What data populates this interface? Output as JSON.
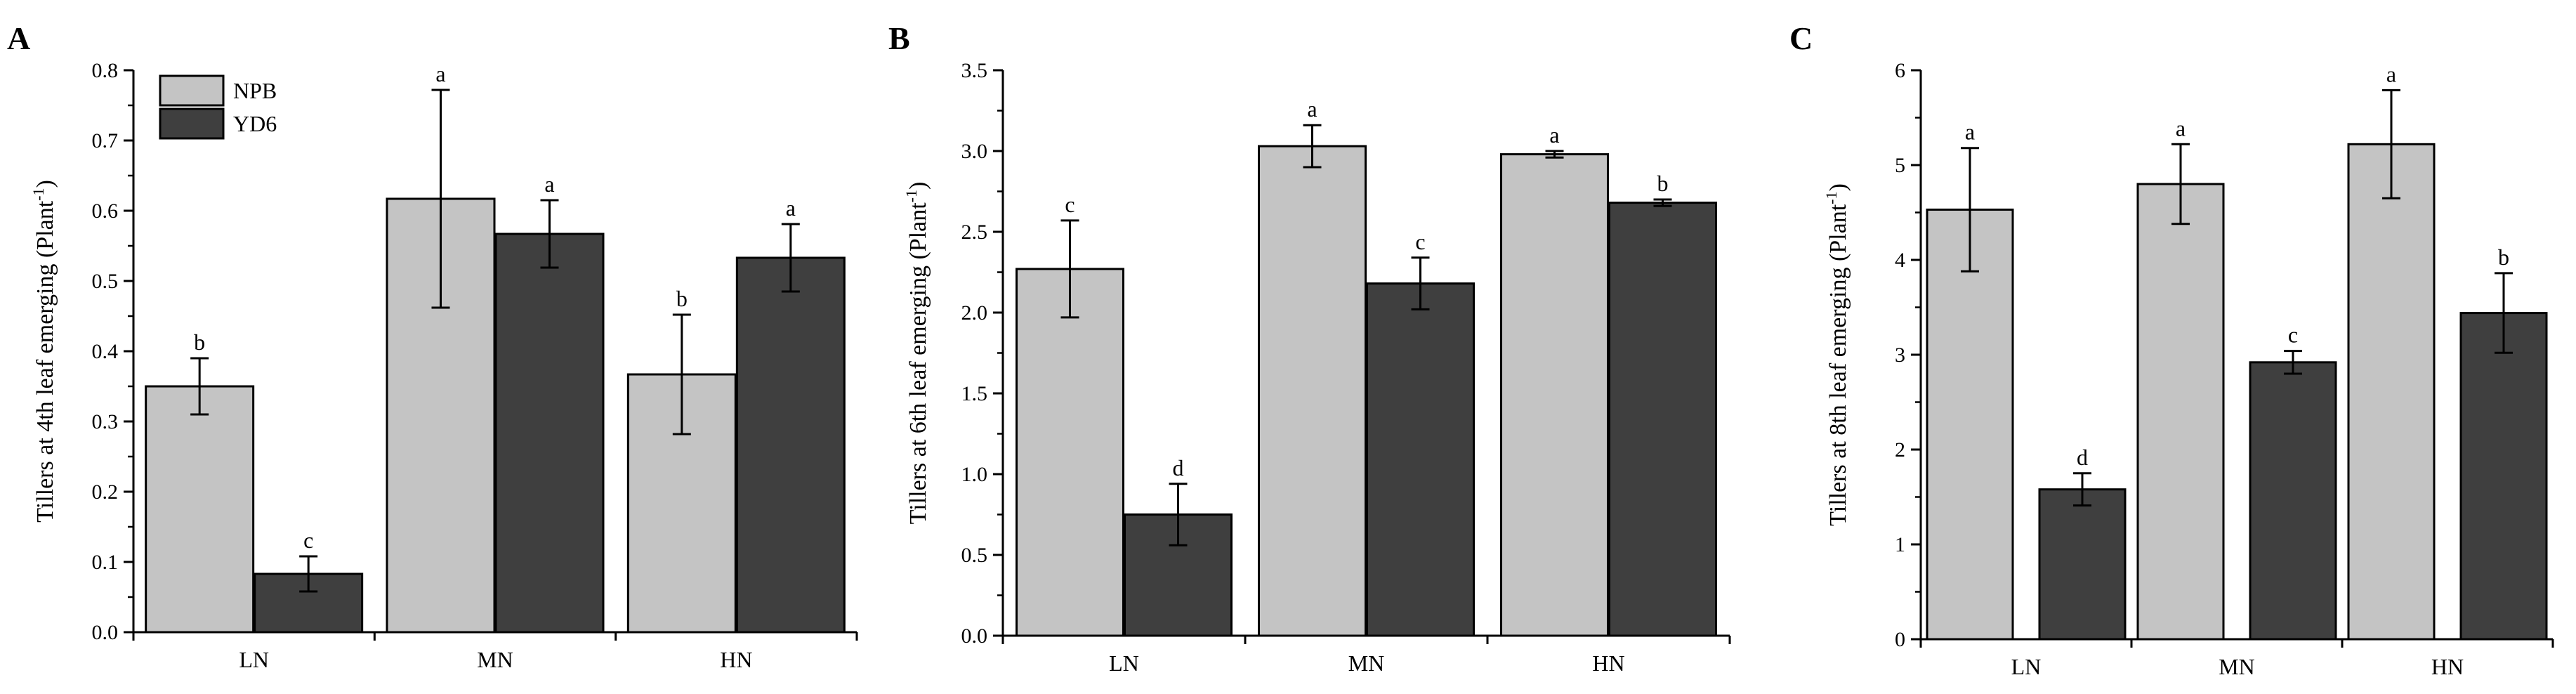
{
  "colors": {
    "NPB": "#c4c4c4",
    "YD6": "#3f3f3f",
    "axis": "#000000"
  },
  "legend": [
    {
      "key": "NPB",
      "label": "NPB"
    },
    {
      "key": "YD6",
      "label": "YD6"
    }
  ],
  "chart_data": [
    {
      "panel": "A",
      "type": "bar",
      "ylabel_main": "Tillers at 4th leaf emerging (Plant",
      "ylabel_sup": "-1",
      "ylabel_end": ")",
      "ylim": [
        0,
        0.8
      ],
      "yticks": [
        0.0,
        0.1,
        0.2,
        0.3,
        0.4,
        0.5,
        0.6,
        0.7,
        0.8
      ],
      "ytick_labels": [
        "0.0",
        "0.1",
        "0.2",
        "0.3",
        "0.4",
        "0.5",
        "0.6",
        "0.7",
        "0.8"
      ],
      "categories": [
        "LN",
        "MN",
        "HN"
      ],
      "show_legend": true,
      "series": [
        {
          "name": "NPB",
          "values": [
            0.35,
            0.617,
            0.367
          ],
          "errors": [
            0.04,
            0.155,
            0.085
          ],
          "labels": [
            "b",
            "a",
            "b"
          ]
        },
        {
          "name": "YD6",
          "values": [
            0.083,
            0.567,
            0.533
          ],
          "errors": [
            0.025,
            0.048,
            0.048
          ],
          "labels": [
            "c",
            "a",
            "a"
          ]
        }
      ]
    },
    {
      "panel": "B",
      "type": "bar",
      "ylabel_main": "Tillers at 6th leaf emerging (Plant",
      "ylabel_sup": "-1",
      "ylabel_end": ")",
      "ylim": [
        0,
        3.5
      ],
      "yticks": [
        0.0,
        0.5,
        1.0,
        1.5,
        2.0,
        2.5,
        3.0,
        3.5
      ],
      "ytick_labels": [
        "0.0",
        "0.5",
        "1.0",
        "1.5",
        "2.0",
        "2.5",
        "3.0",
        "3.5"
      ],
      "categories": [
        "LN",
        "MN",
        "HN"
      ],
      "show_legend": false,
      "series": [
        {
          "name": "NPB",
          "values": [
            2.27,
            3.03,
            2.98
          ],
          "errors": [
            0.3,
            0.13,
            0.02
          ],
          "labels": [
            "c",
            "a",
            "a"
          ]
        },
        {
          "name": "YD6",
          "values": [
            0.75,
            2.18,
            2.68
          ],
          "errors": [
            0.19,
            0.16,
            0.02
          ],
          "labels": [
            "d",
            "c",
            "b"
          ]
        }
      ]
    },
    {
      "panel": "C",
      "type": "bar",
      "ylabel_main": "Tillers at 8th leaf emerging (Plant",
      "ylabel_sup": "-1",
      "ylabel_end": ")",
      "ylim": [
        0,
        6
      ],
      "yticks": [
        0,
        1,
        2,
        3,
        4,
        5,
        6
      ],
      "ytick_labels": [
        "0",
        "1",
        "2",
        "3",
        "4",
        "5",
        "6"
      ],
      "categories": [
        "LN",
        "MN",
        "HN"
      ],
      "show_legend": false,
      "series": [
        {
          "name": "NPB",
          "values": [
            4.53,
            4.8,
            5.22
          ],
          "errors": [
            0.65,
            0.42,
            0.57
          ],
          "labels": [
            "a",
            "a",
            "a"
          ]
        },
        {
          "name": "YD6",
          "values": [
            1.58,
            2.92,
            3.44
          ],
          "errors": [
            0.17,
            0.12,
            0.42
          ],
          "labels": [
            "d",
            "c",
            "b"
          ]
        }
      ]
    }
  ]
}
